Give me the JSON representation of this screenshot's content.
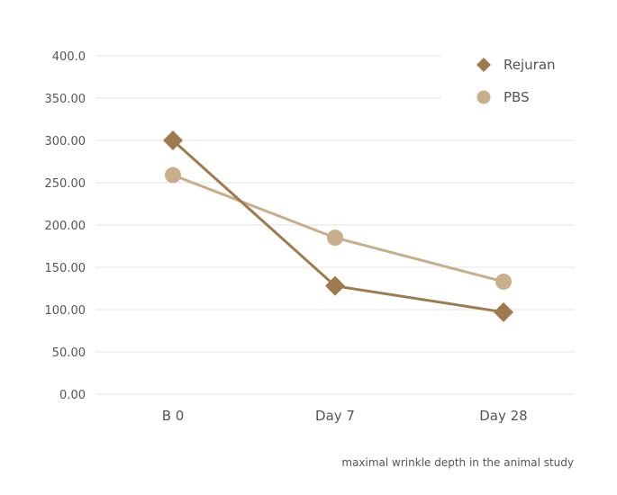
{
  "chart_data": {
    "type": "line",
    "categories": [
      "B 0",
      "Day 7",
      "Day 28"
    ],
    "series": [
      {
        "name": "Rejuran",
        "values": [
          300,
          128,
          97
        ],
        "color": "#9d7b4e",
        "marker": "diamond"
      },
      {
        "name": "PBS",
        "values": [
          259,
          185,
          133
        ],
        "color": "#c9ae8b",
        "marker": "circle"
      }
    ],
    "yticks": [
      "0.00",
      "50.00",
      "100.00",
      "150.00",
      "200.00",
      "250.00",
      "300.00",
      "350.00",
      "400.0"
    ],
    "ylim": [
      0,
      400
    ],
    "grid": true,
    "legend_position": "top-right"
  },
  "caption": "maximal wrinkle depth in the animal study"
}
